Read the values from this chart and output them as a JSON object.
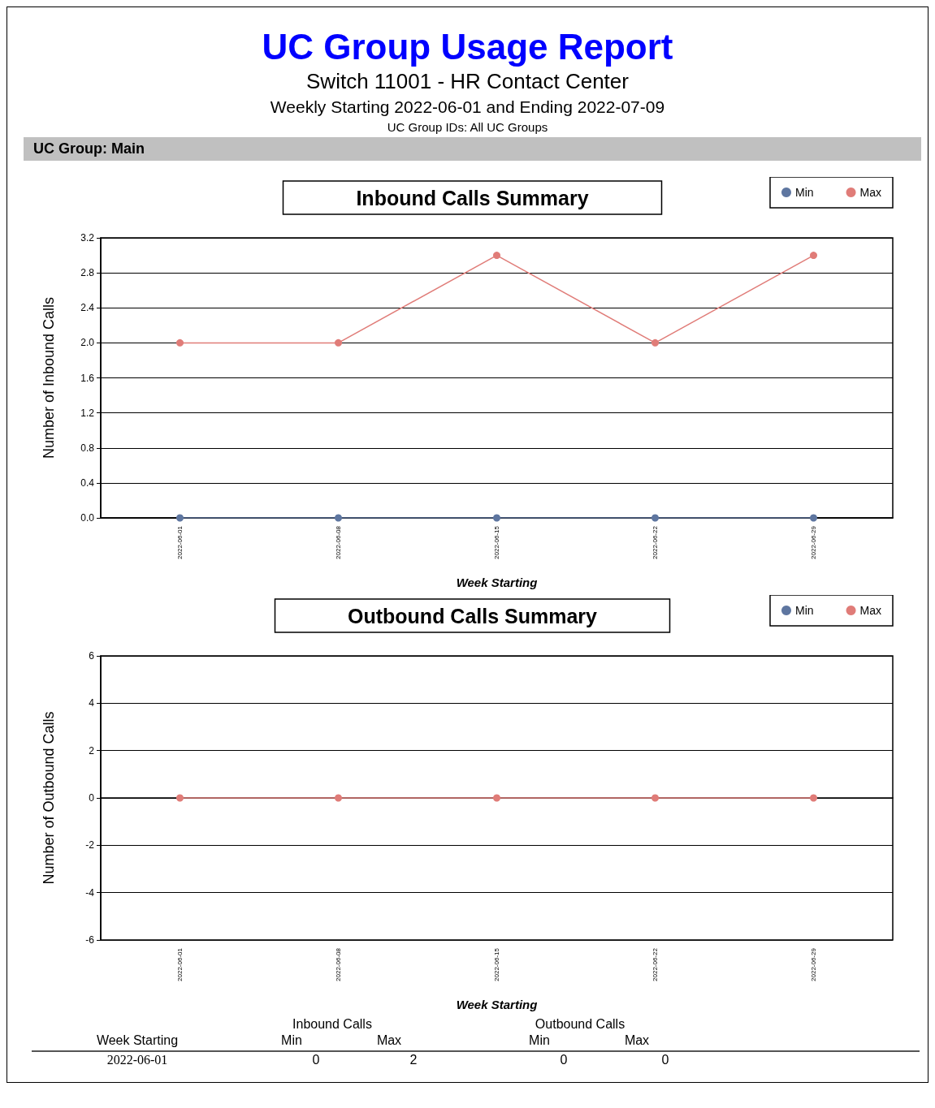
{
  "chart_data": [
    {
      "type": "line",
      "title": "Inbound Calls Summary",
      "xlabel": "Week Starting",
      "ylabel": "Number of Inbound Calls",
      "annotations": [
        "UC Group Usage Report",
        "Switch 11001 - HR Contact Center",
        "Weekly Starting 2022-06-01 and Ending 2022-07-09",
        "UC Group IDs:  All UC Groups",
        "UC Group: Main"
      ],
      "categories": [
        "2022-06-01",
        "2022-06-08",
        "2022-06-15",
        "2022-06-22",
        "2022-06-29"
      ],
      "series": [
        {
          "name": "Min",
          "color": "#5e76a0",
          "values": [
            0,
            0,
            0,
            0,
            0
          ]
        },
        {
          "name": "Max",
          "color": "#e07c78",
          "values": [
            2,
            2,
            3,
            2,
            3
          ]
        }
      ],
      "ylim": [
        0,
        3.2
      ],
      "yticks": [
        {
          "value": 0,
          "label": "0.0"
        },
        {
          "value": 0.4,
          "label": "0.4"
        },
        {
          "value": 0.8,
          "label": "0.8"
        },
        {
          "value": 1.2,
          "label": "1.2"
        },
        {
          "value": 1.6,
          "label": "1.6"
        },
        {
          "value": 2,
          "label": "2.0"
        },
        {
          "value": 2.4,
          "label": "2.4"
        },
        {
          "value": 2.8,
          "label": "2.8"
        },
        {
          "value": 3.2,
          "label": "3.2"
        }
      ],
      "grid": "y",
      "legend": "top right",
      "marker": "circle",
      "line_style": "solid"
    },
    {
      "type": "line",
      "title": "Outbound Calls Summary",
      "xlabel": "Week Starting",
      "ylabel": "Number of Outbound Calls",
      "annotations": [
        "Inbound Calls",
        "Outbound Calls",
        "Week Starting",
        "Min",
        "Max",
        "Min",
        "Max",
        "2022-06-01",
        "0",
        "2",
        "0",
        "0"
      ],
      "categories": [
        "2022-06-01",
        "2022-06-08",
        "2022-06-15",
        "2022-06-22",
        "2022-06-29"
      ],
      "series": [
        {
          "name": "Min",
          "color": "#5e76a0",
          "values": [
            null,
            null,
            null,
            null,
            null
          ]
        },
        {
          "name": "Max",
          "color": "#e07c78",
          "values": [
            0,
            0,
            0,
            0,
            0
          ]
        }
      ],
      "ylim": [
        -6,
        6
      ],
      "yticks": [
        -6,
        -4,
        -2,
        0,
        2,
        4,
        6
      ],
      "grid": "y",
      "legend": "top right",
      "marker": "circle",
      "line_style": "solid"
    }
  ]
}
